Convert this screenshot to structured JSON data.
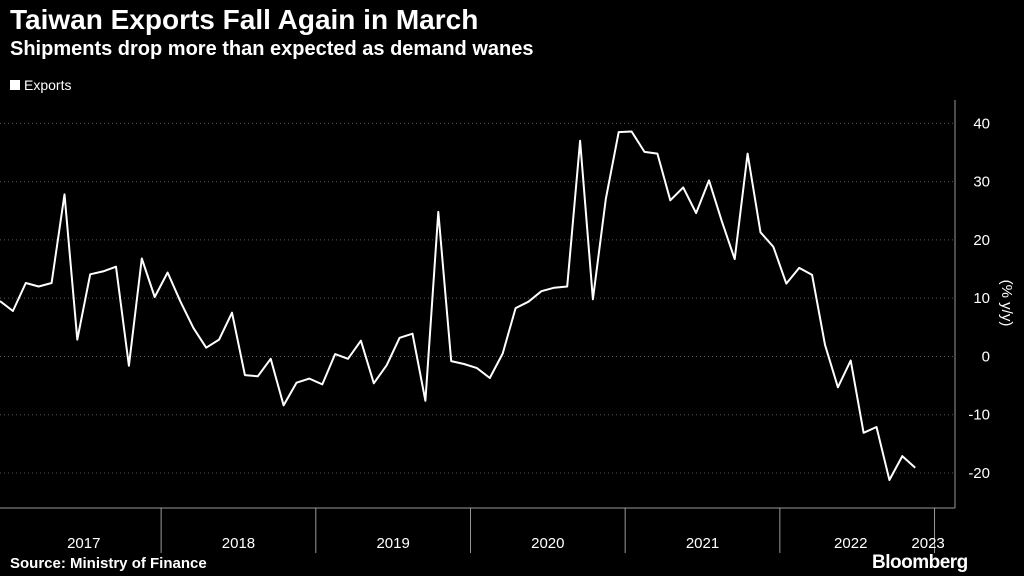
{
  "header": {
    "title": "Taiwan Exports Fall Again in March",
    "subtitle": "Shipments drop more than expected as demand wanes"
  },
  "footer": {
    "source": "Source: Ministry of Finance",
    "brand": "Bloomberg"
  },
  "colors": {
    "background": "#000000",
    "line": "#ffffff",
    "grid": "#555555"
  },
  "chart_data": {
    "type": "line",
    "title": "Taiwan Exports Fall Again in March",
    "subtitle": "Shipments drop more than expected as demand wanes",
    "ylabel": "(% y/y)",
    "xlabel": "",
    "ylim": [
      -26,
      44
    ],
    "yticks": [
      -20,
      -10,
      0,
      10,
      20,
      30,
      40
    ],
    "x_start": "2016-12",
    "year_labels": [
      "2017",
      "2018",
      "2019",
      "2020",
      "2021",
      "2022",
      "2023"
    ],
    "legend": [
      "Exports"
    ],
    "legend_position": "top-left",
    "series": [
      {
        "name": "Exports",
        "values": [
          9.5,
          7.8,
          12.6,
          12.0,
          12.6,
          27.8,
          2.9,
          14.1,
          14.6,
          15.4,
          -1.6,
          16.8,
          10.2,
          14.4,
          9.4,
          4.9,
          1.5,
          2.9,
          7.5,
          -3.2,
          -3.4,
          -0.4,
          -8.4,
          -4.5,
          -3.8,
          -4.8,
          0.4,
          -0.4,
          2.7,
          -4.6,
          -1.5,
          3.2,
          3.9,
          -7.6,
          24.8,
          -0.8,
          -1.3,
          -2.0,
          -3.7,
          0.5,
          8.3,
          9.4,
          11.2,
          11.8,
          12.0,
          37.0,
          9.8,
          27.0,
          38.5,
          38.6,
          35.1,
          34.8,
          26.8,
          29.0,
          24.6,
          30.2,
          23.2,
          16.7,
          34.8,
          21.3,
          18.8,
          12.5,
          15.2,
          14.0,
          2.0,
          -5.3,
          -0.7,
          -13.1,
          -12.1,
          -21.2,
          -17.1,
          -19.1
        ]
      }
    ]
  }
}
